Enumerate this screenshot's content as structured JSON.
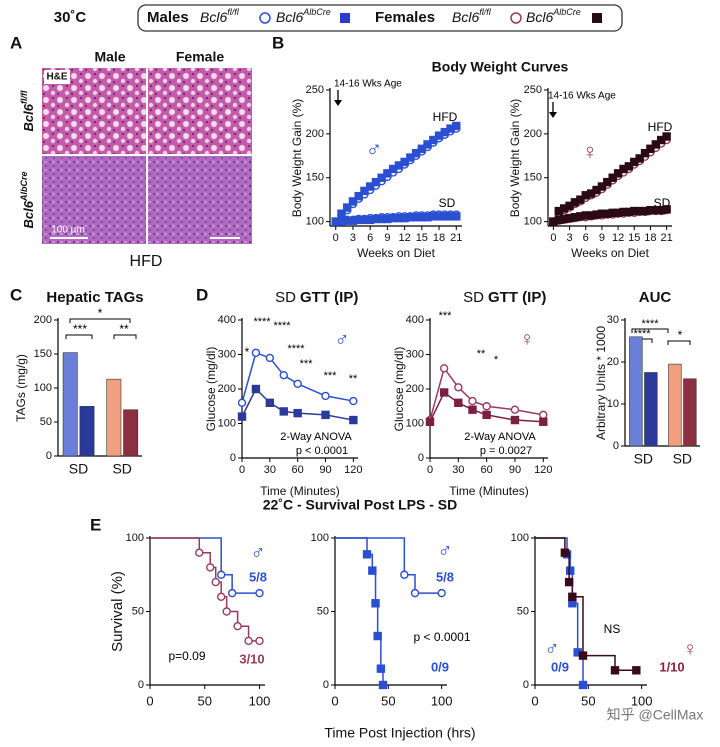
{
  "legend": {
    "temp": "30˚C",
    "males": "Males",
    "females": "Females",
    "fl": {
      "base": "Bcl6",
      "sup": "fl/fl"
    },
    "alb": {
      "base": "Bcl6",
      "sup": "AlbCre"
    }
  },
  "panel_a": {
    "label": "A",
    "cols": [
      "Male",
      "Female"
    ],
    "stain": "H&E",
    "rows": [
      {
        "base": "Bcl6",
        "sup": "fl/fl"
      },
      {
        "base": "Bcl6",
        "sup": "AlbCre"
      }
    ],
    "scale": "100 µm",
    "diet": "HFD"
  },
  "panel_labels": [
    "B",
    "C",
    "D",
    "E"
  ],
  "titles": {
    "b": "Body Weight Curves",
    "e": "22˚C - Survival Post LPS - SD",
    "e_xlabel": "Time Post Injection (hrs)"
  },
  "watermark": "知乎 @CellMax",
  "chart_data": [
    {
      "type": "line",
      "ylabel": "Body Weight Gain (%)",
      "xlabel": "Weeks on Diet",
      "xlim": [
        -1,
        22
      ],
      "xticks": [
        0,
        3,
        6,
        9,
        12,
        15,
        18,
        21
      ],
      "ylim": [
        95,
        250
      ],
      "yticks": [
        100,
        150,
        200,
        250
      ],
      "annotations": [
        "14-16 Wks Age",
        "HFD",
        "SD",
        "♂"
      ],
      "x": [
        0,
        1,
        2,
        3,
        4,
        5,
        6,
        7,
        8,
        9,
        10,
        11,
        12,
        13,
        14,
        15,
        16,
        17,
        18,
        19,
        20,
        21
      ],
      "series": [
        {
          "color": "#2a4fd0",
          "marker": "circle",
          "filled": false,
          "values": [
            100,
            107,
            113,
            120,
            126,
            131,
            136,
            141,
            146,
            151,
            156,
            160,
            165,
            170,
            175,
            180,
            185,
            190,
            195,
            199,
            203,
            206
          ]
        },
        {
          "color": "#2a4fd0",
          "marker": "square",
          "filled": true,
          "values": [
            100,
            109,
            116,
            123,
            129,
            135,
            140,
            145,
            150,
            155,
            160,
            164,
            168,
            173,
            178,
            183,
            188,
            193,
            198,
            202,
            206,
            209
          ]
        },
        {
          "color": "#2a4fd0",
          "marker": "circle",
          "filled": false,
          "values": [
            100,
            101,
            102,
            102,
            103,
            103,
            104,
            104,
            105,
            105,
            105,
            106,
            106,
            106,
            107,
            107,
            107,
            108,
            108,
            108,
            108,
            108
          ]
        },
        {
          "color": "#2a4fd0",
          "marker": "square",
          "filled": true,
          "values": [
            100,
            100,
            101,
            101,
            102,
            102,
            102,
            103,
            103,
            103,
            104,
            104,
            104,
            105,
            105,
            105,
            105,
            106,
            106,
            106,
            106,
            106
          ]
        }
      ]
    },
    {
      "type": "line",
      "ylabel": "Body Weight Gain (%)",
      "xlabel": "Weeks on Diet",
      "xlim": [
        -1,
        22
      ],
      "xticks": [
        0,
        3,
        6,
        9,
        12,
        15,
        18,
        21
      ],
      "ylim": [
        95,
        250
      ],
      "yticks": [
        100,
        150,
        200,
        250
      ],
      "annotations": [
        "14-16 Wks Age",
        "HFD",
        "SD",
        "♀"
      ],
      "x": [
        0,
        1,
        2,
        3,
        4,
        5,
        6,
        7,
        8,
        9,
        10,
        11,
        12,
        13,
        14,
        15,
        16,
        17,
        18,
        19,
        20,
        21
      ],
      "series": [
        {
          "color": "#9a3a5a",
          "marker": "circle",
          "filled": false,
          "values": [
            100,
            110,
            113,
            116,
            120,
            123,
            127,
            130,
            133,
            137,
            142,
            147,
            152,
            156,
            160,
            165,
            169,
            174,
            179,
            184,
            189,
            193
          ]
        },
        {
          "color": "#2a0a14",
          "marker": "square",
          "filled": true,
          "values": [
            100,
            112,
            115,
            118,
            122,
            125,
            130,
            132,
            136,
            140,
            145,
            150,
            155,
            160,
            163,
            168,
            172,
            178,
            183,
            188,
            193,
            197
          ]
        },
        {
          "color": "#9a3a5a",
          "marker": "circle",
          "filled": false,
          "values": [
            100,
            101,
            102,
            103,
            104,
            105,
            105,
            106,
            107,
            107,
            108,
            108,
            109,
            109,
            110,
            110,
            111,
            111,
            112,
            112,
            112,
            113
          ]
        },
        {
          "color": "#2a0a14",
          "marker": "square",
          "filled": true,
          "values": [
            100,
            102,
            103,
            104,
            105,
            106,
            107,
            107,
            108,
            109,
            109,
            110,
            110,
            111,
            111,
            112,
            112,
            112,
            113,
            113,
            113,
            114
          ]
        }
      ]
    },
    {
      "type": "bar",
      "title": "Hepatic TAGs",
      "ylabel": "TAGs (mg/g)",
      "ylim": [
        0,
        200
      ],
      "yticks": [
        0,
        50,
        100,
        150,
        200
      ],
      "group_labels": [
        "SD",
        "SD"
      ],
      "values": [
        152,
        73,
        113,
        68
      ],
      "colors": [
        "#6a7fd8",
        "#2a3a9a",
        "#f0a080",
        "#8a3040"
      ],
      "annotations": [
        "***",
        "*",
        "**"
      ]
    },
    {
      "type": "line",
      "subtitle": "SD",
      "title": "GTT (IP)",
      "ylabel": "Glucose (mg/dl)",
      "xlabel": "Time (Minutes)",
      "xlim": [
        0,
        125
      ],
      "xticks": [
        0,
        30,
        60,
        90,
        120
      ],
      "ylim": [
        0,
        400
      ],
      "yticks": [
        0,
        100,
        200,
        300,
        400
      ],
      "annotations": [
        "*",
        "****",
        "****",
        "****",
        "***",
        "***",
        "**",
        "2-Way ANOVA",
        "p < 0.0001",
        "♂"
      ],
      "x": [
        0,
        15,
        30,
        45,
        60,
        90,
        120
      ],
      "series": [
        {
          "color": "#2a4fd0",
          "marker": "circle",
          "filled": false,
          "values": [
            160,
            305,
            290,
            240,
            215,
            180,
            165
          ]
        },
        {
          "color": "#2a3a9a",
          "marker": "square",
          "filled": true,
          "values": [
            120,
            200,
            160,
            135,
            130,
            125,
            110
          ]
        }
      ]
    },
    {
      "type": "line",
      "subtitle": "SD",
      "title": "GTT (IP)",
      "ylabel": "Glucose (mg/dl)",
      "xlabel": "Time (Minutes)",
      "xlim": [
        0,
        125
      ],
      "xticks": [
        0,
        30,
        60,
        90,
        120
      ],
      "ylim": [
        0,
        400
      ],
      "yticks": [
        0,
        100,
        200,
        300,
        400
      ],
      "annotations": [
        "***",
        "**",
        "*",
        "2-Way ANOVA",
        "p = 0.0027",
        "♀"
      ],
      "x": [
        0,
        15,
        30,
        45,
        60,
        90,
        120
      ],
      "series": [
        {
          "color": "#9a3a5a",
          "marker": "circle",
          "filled": false,
          "values": [
            110,
            260,
            205,
            165,
            150,
            140,
            125
          ]
        },
        {
          "color": "#7a2040",
          "marker": "square",
          "filled": true,
          "values": [
            105,
            190,
            160,
            140,
            125,
            110,
            105
          ]
        }
      ]
    },
    {
      "type": "bar",
      "title": "AUC",
      "ylabel": "Arbitrary Units * 1000",
      "ylim": [
        0,
        30
      ],
      "yticks": [
        0,
        10,
        20,
        30
      ],
      "group_labels": [
        "SD",
        "SD"
      ],
      "values": [
        26,
        17.5,
        19.5,
        16
      ],
      "colors": [
        "#6a7fd8",
        "#2a3a9a",
        "#f0a080",
        "#8a3040"
      ],
      "annotations": [
        "****",
        "****",
        "*"
      ]
    },
    {
      "type": "survival",
      "ylabel": "Survival (%)",
      "xlim": [
        0,
        105
      ],
      "xticks": [
        0,
        50,
        100
      ],
      "ylim": [
        0,
        100
      ],
      "yticks": [
        0,
        50,
        100
      ],
      "annotations": [
        "p=0.09",
        "5/8",
        "3/10",
        "♂"
      ],
      "series": [
        {
          "color": "#2a4fd0",
          "marker": "circle",
          "filled": false,
          "x": [
            0,
            65,
            75,
            100
          ],
          "values": [
            100,
            75,
            62.5,
            62.5
          ]
        },
        {
          "color": "#9a3a5a",
          "marker": "circle",
          "filled": false,
          "x": [
            0,
            45,
            55,
            60,
            65,
            70,
            80,
            90,
            100
          ],
          "values": [
            100,
            90,
            80,
            70,
            60,
            50,
            40,
            30,
            30
          ]
        }
      ]
    },
    {
      "type": "survival",
      "xlim": [
        0,
        105
      ],
      "xticks": [
        0,
        50,
        100
      ],
      "ylim": [
        0,
        100
      ],
      "yticks": [
        0,
        50,
        100
      ],
      "annotations": [
        "5/8",
        "p < 0.0001",
        "0/9",
        "♂"
      ],
      "series": [
        {
          "color": "#2a4fd0",
          "marker": "circle",
          "filled": false,
          "x": [
            0,
            65,
            75,
            100
          ],
          "values": [
            100,
            75,
            62.5,
            62.5
          ]
        },
        {
          "color": "#2a4fd0",
          "marker": "square",
          "filled": true,
          "x": [
            0,
            30,
            35,
            38,
            40,
            43,
            45
          ],
          "values": [
            100,
            88.9,
            77.8,
            55.6,
            33.3,
            11.1,
            0
          ]
        }
      ]
    },
    {
      "type": "survival",
      "xlim": [
        0,
        105
      ],
      "xticks": [
        0,
        50,
        100
      ],
      "ylim": [
        0,
        100
      ],
      "yticks": [
        0,
        50,
        100
      ],
      "annotations": [
        "NS",
        "0/9",
        "1/10",
        "♂",
        "♀"
      ],
      "series": [
        {
          "color": "#2a4fd0",
          "marker": "square",
          "filled": true,
          "x": [
            0,
            30,
            33,
            35,
            40,
            45
          ],
          "values": [
            100,
            88.9,
            77.8,
            55.6,
            22.2,
            0
          ]
        },
        {
          "color": "#3a0a1a",
          "marker": "square",
          "filled": true,
          "x": [
            0,
            28,
            32,
            35,
            45,
            75,
            95
          ],
          "values": [
            100,
            90,
            70,
            60,
            20,
            10,
            10
          ]
        }
      ]
    }
  ]
}
